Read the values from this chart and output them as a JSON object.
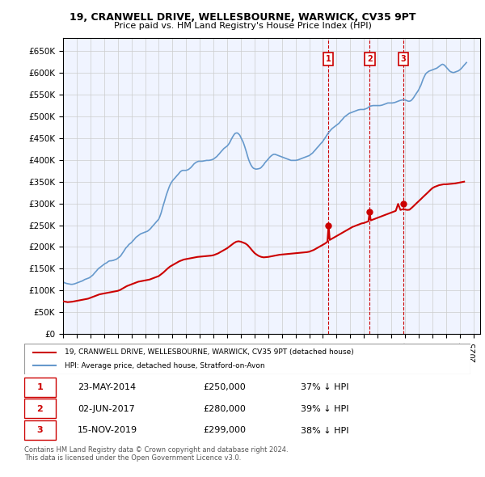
{
  "title": "19, CRANWELL DRIVE, WELLESBOURNE, WARWICK, CV35 9PT",
  "subtitle": "Price paid vs. HM Land Registry's House Price Index (HPI)",
  "ylabel_prefix": "£",
  "ylim": [
    0,
    680000
  ],
  "yticks": [
    0,
    50000,
    100000,
    150000,
    200000,
    250000,
    300000,
    350000,
    400000,
    450000,
    500000,
    550000,
    600000,
    650000
  ],
  "xlim_start": 1995.0,
  "xlim_end": 2025.5,
  "legend_line1": "19, CRANWELL DRIVE, WELLESBOURNE, WARWICK, CV35 9PT (detached house)",
  "legend_line2": "HPI: Average price, detached house, Stratford-on-Avon",
  "line_color_red": "#cc0000",
  "line_color_blue": "#6699cc",
  "transactions": [
    {
      "num": 1,
      "date": "23-MAY-2014",
      "price": 250000,
      "pct": "37%",
      "dir": "↓",
      "year": 2014.39
    },
    {
      "num": 2,
      "date": "02-JUN-2017",
      "price": 280000,
      "pct": "39%",
      "dir": "↓",
      "year": 2017.42
    },
    {
      "num": 3,
      "date": "15-NOV-2019",
      "price": 299000,
      "pct": "38%",
      "dir": "↓",
      "year": 2019.88
    }
  ],
  "footnote1": "Contains HM Land Registry data © Crown copyright and database right 2024.",
  "footnote2": "This data is licensed under the Open Government Licence v3.0.",
  "hpi_data": {
    "years": [
      1995.0,
      1995.08,
      1995.17,
      1995.25,
      1995.33,
      1995.42,
      1995.5,
      1995.58,
      1995.67,
      1995.75,
      1995.83,
      1995.92,
      1996.0,
      1996.08,
      1996.17,
      1996.25,
      1996.33,
      1996.42,
      1996.5,
      1996.58,
      1996.67,
      1996.75,
      1996.83,
      1996.92,
      1997.0,
      1997.08,
      1997.17,
      1997.25,
      1997.33,
      1997.42,
      1997.5,
      1997.58,
      1997.67,
      1997.75,
      1997.83,
      1997.92,
      1998.0,
      1998.08,
      1998.17,
      1998.25,
      1998.33,
      1998.42,
      1998.5,
      1998.58,
      1998.67,
      1998.75,
      1998.83,
      1998.92,
      1999.0,
      1999.08,
      1999.17,
      1999.25,
      1999.33,
      1999.42,
      1999.5,
      1999.58,
      1999.67,
      1999.75,
      1999.83,
      1999.92,
      2000.0,
      2000.08,
      2000.17,
      2000.25,
      2000.33,
      2000.42,
      2000.5,
      2000.58,
      2000.67,
      2000.75,
      2000.83,
      2000.92,
      2001.0,
      2001.08,
      2001.17,
      2001.25,
      2001.33,
      2001.42,
      2001.5,
      2001.58,
      2001.67,
      2001.75,
      2001.83,
      2001.92,
      2002.0,
      2002.08,
      2002.17,
      2002.25,
      2002.33,
      2002.42,
      2002.5,
      2002.58,
      2002.67,
      2002.75,
      2002.83,
      2002.92,
      2003.0,
      2003.08,
      2003.17,
      2003.25,
      2003.33,
      2003.42,
      2003.5,
      2003.58,
      2003.67,
      2003.75,
      2003.83,
      2003.92,
      2004.0,
      2004.08,
      2004.17,
      2004.25,
      2004.33,
      2004.42,
      2004.5,
      2004.58,
      2004.67,
      2004.75,
      2004.83,
      2004.92,
      2005.0,
      2005.08,
      2005.17,
      2005.25,
      2005.33,
      2005.42,
      2005.5,
      2005.58,
      2005.67,
      2005.75,
      2005.83,
      2005.92,
      2006.0,
      2006.08,
      2006.17,
      2006.25,
      2006.33,
      2006.42,
      2006.5,
      2006.58,
      2006.67,
      2006.75,
      2006.83,
      2006.92,
      2007.0,
      2007.08,
      2007.17,
      2007.25,
      2007.33,
      2007.42,
      2007.5,
      2007.58,
      2007.67,
      2007.75,
      2007.83,
      2007.92,
      2008.0,
      2008.08,
      2008.17,
      2008.25,
      2008.33,
      2008.42,
      2008.5,
      2008.58,
      2008.67,
      2008.75,
      2008.83,
      2008.92,
      2009.0,
      2009.08,
      2009.17,
      2009.25,
      2009.33,
      2009.42,
      2009.5,
      2009.58,
      2009.67,
      2009.75,
      2009.83,
      2009.92,
      2010.0,
      2010.08,
      2010.17,
      2010.25,
      2010.33,
      2010.42,
      2010.5,
      2010.58,
      2010.67,
      2010.75,
      2010.83,
      2010.92,
      2011.0,
      2011.08,
      2011.17,
      2011.25,
      2011.33,
      2011.42,
      2011.5,
      2011.58,
      2011.67,
      2011.75,
      2011.83,
      2011.92,
      2012.0,
      2012.08,
      2012.17,
      2012.25,
      2012.33,
      2012.42,
      2012.5,
      2012.58,
      2012.67,
      2012.75,
      2012.83,
      2012.92,
      2013.0,
      2013.08,
      2013.17,
      2013.25,
      2013.33,
      2013.42,
      2013.5,
      2013.58,
      2013.67,
      2013.75,
      2013.83,
      2013.92,
      2014.0,
      2014.08,
      2014.17,
      2014.25,
      2014.33,
      2014.42,
      2014.5,
      2014.58,
      2014.67,
      2014.75,
      2014.83,
      2014.92,
      2015.0,
      2015.08,
      2015.17,
      2015.25,
      2015.33,
      2015.42,
      2015.5,
      2015.58,
      2015.67,
      2015.75,
      2015.83,
      2015.92,
      2016.0,
      2016.08,
      2016.17,
      2016.25,
      2016.33,
      2016.42,
      2016.5,
      2016.58,
      2016.67,
      2016.75,
      2016.83,
      2016.92,
      2017.0,
      2017.08,
      2017.17,
      2017.25,
      2017.33,
      2017.42,
      2017.5,
      2017.58,
      2017.67,
      2017.75,
      2017.83,
      2017.92,
      2018.0,
      2018.08,
      2018.17,
      2018.25,
      2018.33,
      2018.42,
      2018.5,
      2018.58,
      2018.67,
      2018.75,
      2018.83,
      2018.92,
      2019.0,
      2019.08,
      2019.17,
      2019.25,
      2019.33,
      2019.42,
      2019.5,
      2019.58,
      2019.67,
      2019.75,
      2019.83,
      2019.92,
      2020.0,
      2020.08,
      2020.17,
      2020.25,
      2020.33,
      2020.42,
      2020.5,
      2020.58,
      2020.67,
      2020.75,
      2020.83,
      2020.92,
      2021.0,
      2021.08,
      2021.17,
      2021.25,
      2021.33,
      2021.42,
      2021.5,
      2021.58,
      2021.67,
      2021.75,
      2021.83,
      2021.92,
      2022.0,
      2022.08,
      2022.17,
      2022.25,
      2022.33,
      2022.42,
      2022.5,
      2022.58,
      2022.67,
      2022.75,
      2022.83,
      2022.92,
      2023.0,
      2023.08,
      2023.17,
      2023.25,
      2023.33,
      2023.42,
      2023.5,
      2023.58,
      2023.67,
      2023.75,
      2023.83,
      2023.92,
      2024.0,
      2024.08,
      2024.17,
      2024.25,
      2024.33,
      2024.42,
      2024.5
    ],
    "values": [
      120000,
      118000,
      117000,
      116000,
      115500,
      115000,
      114500,
      114000,
      114000,
      114500,
      115000,
      116000,
      117000,
      118000,
      119000,
      120000,
      121000,
      122000,
      123500,
      125000,
      126000,
      127000,
      128000,
      129000,
      131000,
      133000,
      135000,
      138000,
      141000,
      144000,
      147000,
      150000,
      152000,
      154000,
      156000,
      158000,
      160000,
      162000,
      163000,
      165000,
      167000,
      168000,
      168000,
      168500,
      169000,
      170000,
      171000,
      172000,
      174000,
      176000,
      178000,
      181000,
      185000,
      189000,
      193000,
      197000,
      200000,
      203000,
      206000,
      208000,
      210000,
      213000,
      216000,
      219000,
      222000,
      224000,
      226000,
      228000,
      230000,
      231000,
      232000,
      233000,
      234000,
      235000,
      236000,
      238000,
      240000,
      243000,
      246000,
      249000,
      252000,
      255000,
      258000,
      261000,
      264000,
      270000,
      278000,
      287000,
      296000,
      305000,
      314000,
      322000,
      330000,
      337000,
      343000,
      348000,
      352000,
      355000,
      358000,
      361000,
      364000,
      367000,
      370000,
      373000,
      375000,
      376000,
      376000,
      376000,
      376000,
      377000,
      378000,
      380000,
      382000,
      385000,
      388000,
      391000,
      393000,
      395000,
      396000,
      397000,
      397000,
      397000,
      397000,
      397500,
      398000,
      398500,
      399000,
      399000,
      399000,
      399500,
      400000,
      401000,
      402000,
      404000,
      406000,
      408000,
      411000,
      414000,
      417000,
      420000,
      423000,
      426000,
      428000,
      430000,
      432000,
      435000,
      439000,
      444000,
      449000,
      454000,
      458000,
      461000,
      462000,
      462000,
      460000,
      457000,
      452000,
      447000,
      441000,
      434000,
      426000,
      417000,
      408000,
      400000,
      393000,
      388000,
      384000,
      381000,
      380000,
      379000,
      379000,
      379500,
      380000,
      381000,
      383000,
      386000,
      389000,
      393000,
      396000,
      399000,
      402000,
      405000,
      408000,
      410000,
      412000,
      413000,
      413000,
      412000,
      411000,
      410000,
      409000,
      408000,
      407000,
      406000,
      405000,
      404000,
      403000,
      402000,
      401000,
      400000,
      399000,
      399000,
      399000,
      399000,
      399000,
      399500,
      400000,
      401000,
      402000,
      403000,
      404000,
      405000,
      406000,
      407000,
      408000,
      409000,
      410000,
      412000,
      414000,
      416000,
      419000,
      422000,
      425000,
      428000,
      431000,
      434000,
      437000,
      440000,
      443000,
      447000,
      451000,
      455000,
      459000,
      463000,
      466000,
      469000,
      472000,
      474000,
      476000,
      478000,
      480000,
      482000,
      484000,
      487000,
      490000,
      493000,
      496000,
      499000,
      501000,
      503000,
      505000,
      507000,
      508000,
      509000,
      510000,
      511000,
      512000,
      513000,
      514000,
      515000,
      515500,
      516000,
      516000,
      516000,
      516000,
      517000,
      518000,
      519000,
      521000,
      523000,
      524000,
      524500,
      525000,
      525000,
      525000,
      525000,
      525000,
      525000,
      525000,
      525500,
      526000,
      527000,
      528000,
      529000,
      530000,
      531000,
      531000,
      531000,
      531000,
      531000,
      531500,
      532000,
      533000,
      534000,
      535000,
      536000,
      537000,
      537500,
      538000,
      538000,
      538000,
      537000,
      536000,
      535000,
      535000,
      536000,
      538000,
      541000,
      545000,
      549000,
      553000,
      557000,
      561000,
      566000,
      572000,
      579000,
      586000,
      592000,
      597000,
      600000,
      602000,
      604000,
      605000,
      606000,
      607000,
      608000,
      609000,
      610000,
      611000,
      613000,
      615000,
      617000,
      619000,
      620000,
      619000,
      617000,
      614000,
      611000,
      608000,
      605000,
      603000,
      602000,
      601000,
      601000,
      602000,
      603000,
      604000,
      605000,
      607000,
      609000,
      612000,
      615000,
      618000,
      621000,
      624000
    ]
  },
  "price_data": {
    "years": [
      1995.0,
      1995.17,
      1995.33,
      1995.5,
      1995.67,
      1995.83,
      1996.0,
      1996.17,
      1996.33,
      1996.5,
      1996.67,
      1996.83,
      1997.0,
      1997.17,
      1997.33,
      1997.5,
      1997.67,
      1997.83,
      1998.0,
      1998.17,
      1998.33,
      1998.5,
      1998.67,
      1998.83,
      1999.0,
      1999.17,
      1999.33,
      1999.5,
      1999.67,
      1999.83,
      2000.0,
      2000.17,
      2000.33,
      2000.5,
      2000.67,
      2000.83,
      2001.0,
      2001.17,
      2001.33,
      2001.5,
      2001.67,
      2001.83,
      2002.0,
      2002.17,
      2002.33,
      2002.5,
      2002.67,
      2002.83,
      2003.0,
      2003.17,
      2003.33,
      2003.5,
      2003.67,
      2003.83,
      2004.0,
      2004.17,
      2004.33,
      2004.5,
      2004.67,
      2004.83,
      2005.0,
      2005.17,
      2005.33,
      2005.5,
      2005.67,
      2005.83,
      2006.0,
      2006.17,
      2006.33,
      2006.5,
      2006.67,
      2006.83,
      2007.0,
      2007.17,
      2007.33,
      2007.5,
      2007.67,
      2007.83,
      2008.0,
      2008.17,
      2008.33,
      2008.5,
      2008.67,
      2008.83,
      2009.0,
      2009.17,
      2009.33,
      2009.5,
      2009.67,
      2009.83,
      2010.0,
      2010.17,
      2010.33,
      2010.5,
      2010.67,
      2010.83,
      2011.0,
      2011.17,
      2011.33,
      2011.5,
      2011.67,
      2011.83,
      2012.0,
      2012.17,
      2012.33,
      2012.5,
      2012.67,
      2012.83,
      2013.0,
      2013.17,
      2013.33,
      2013.5,
      2013.67,
      2013.83,
      2014.0,
      2014.17,
      2014.33,
      2014.42,
      2014.5,
      2014.67,
      2014.83,
      2015.0,
      2015.17,
      2015.33,
      2015.5,
      2015.67,
      2015.83,
      2016.0,
      2016.17,
      2016.33,
      2016.5,
      2016.67,
      2016.83,
      2017.0,
      2017.17,
      2017.33,
      2017.42,
      2017.5,
      2017.67,
      2017.83,
      2018.0,
      2018.17,
      2018.33,
      2018.5,
      2018.67,
      2018.83,
      2019.0,
      2019.17,
      2019.33,
      2019.5,
      2019.67,
      2019.88,
      2020.0,
      2020.17,
      2020.33,
      2020.5,
      2020.67,
      2020.83,
      2021.0,
      2021.17,
      2021.33,
      2021.5,
      2021.67,
      2021.83,
      2022.0,
      2022.17,
      2022.33,
      2022.5,
      2022.67,
      2022.83,
      2023.0,
      2023.17,
      2023.33,
      2023.5,
      2023.67,
      2023.83,
      2024.0,
      2024.17,
      2024.33
    ],
    "values": [
      75000,
      74000,
      73000,
      73500,
      74000,
      75000,
      76000,
      77000,
      78000,
      79000,
      80000,
      81000,
      83000,
      85000,
      87000,
      89000,
      91000,
      92000,
      93000,
      94000,
      95000,
      96000,
      97000,
      98000,
      99000,
      101000,
      104000,
      107000,
      110000,
      112000,
      114000,
      116000,
      118000,
      120000,
      121000,
      122000,
      123000,
      124000,
      125000,
      127000,
      129000,
      131000,
      133000,
      137000,
      141000,
      146000,
      151000,
      155000,
      158000,
      161000,
      164000,
      167000,
      169000,
      171000,
      172000,
      173000,
      174000,
      175000,
      176000,
      177000,
      177500,
      178000,
      178500,
      179000,
      179500,
      180000,
      181000,
      183000,
      185000,
      188000,
      191000,
      194000,
      197000,
      201000,
      205000,
      209000,
      212000,
      213000,
      212000,
      210000,
      208000,
      204000,
      198000,
      192000,
      186000,
      182000,
      179000,
      177000,
      176000,
      176500,
      177000,
      178000,
      179000,
      180000,
      181000,
      182000,
      182500,
      183000,
      183500,
      184000,
      184500,
      185000,
      185500,
      186000,
      186500,
      187000,
      187500,
      188000,
      189000,
      191000,
      193000,
      196000,
      199000,
      202000,
      205000,
      208000,
      212000,
      250000,
      216000,
      219000,
      222000,
      225000,
      228000,
      231000,
      234000,
      237000,
      240000,
      243000,
      246000,
      248000,
      250000,
      252000,
      254000,
      255000,
      257000,
      259000,
      280000,
      261000,
      263000,
      265000,
      267000,
      269000,
      271000,
      273000,
      275000,
      277000,
      279000,
      281000,
      283000,
      299000,
      285000,
      287000,
      286000,
      285000,
      285500,
      290000,
      295000,
      300000,
      305000,
      310000,
      315000,
      320000,
      325000,
      330000,
      335000,
      338000,
      340000,
      342000,
      343000,
      344000,
      344000,
      344500,
      345000,
      345500,
      346000,
      347000,
      348000,
      349000,
      350000
    ]
  }
}
